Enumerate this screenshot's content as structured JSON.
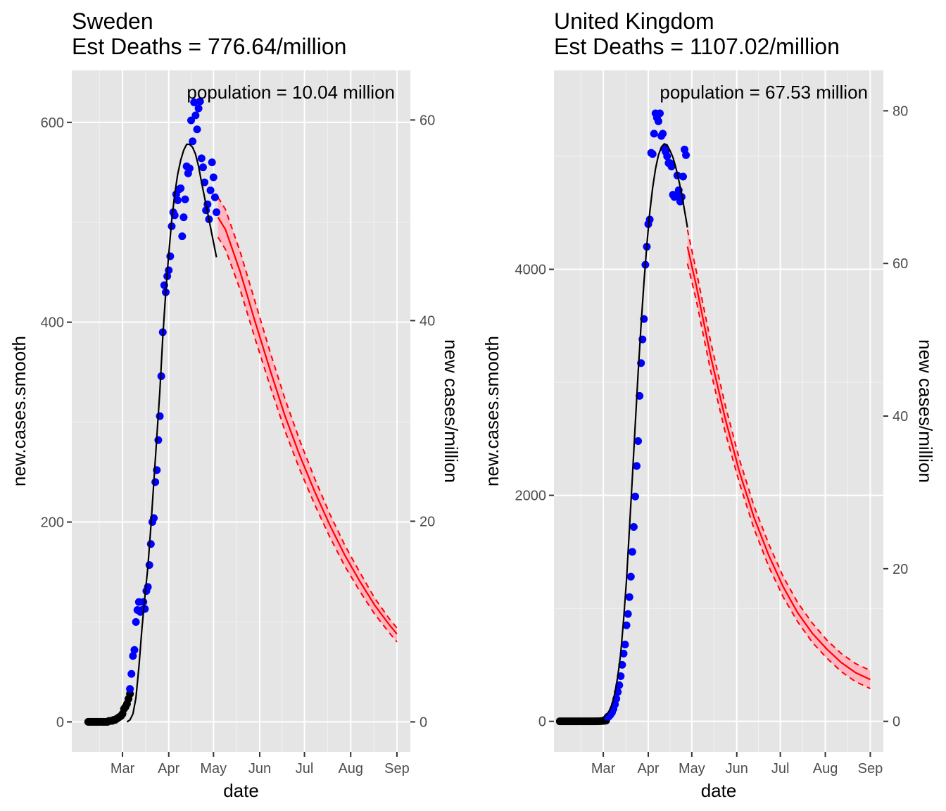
{
  "chart_data": [
    {
      "type": "scatter",
      "title": "Sweden",
      "subtitle": "Est Deaths = 776.64/million",
      "annotation": "population = 10.04 million",
      "xlabel": "date",
      "ylabel": "new.cases.smooth",
      "y2label": "new cases/million",
      "x_ticks": [
        "Mar",
        "Apr",
        "May",
        "Jun",
        "Jul",
        "Aug",
        "Sep"
      ],
      "x_tick_days": [
        31,
        62,
        92,
        123,
        153,
        184,
        215
      ],
      "xlim": [
        -3,
        224
      ],
      "y_ticks": [
        0,
        200,
        400,
        600
      ],
      "y2_ticks": [
        0,
        20,
        40,
        60
      ],
      "ylim": [
        -30,
        652
      ],
      "population_million": 10.04,
      "grid": true,
      "colors": {
        "observed": "#0000ff",
        "early": "#000000",
        "fit": "#000000",
        "forecast": "#ff0000",
        "band": "#ffb6c1",
        "panel": "#e5e5e5"
      },
      "series": [
        {
          "name": "",
          "kind": "points-early",
          "x": [
            8,
            9,
            10,
            11,
            12,
            13,
            14,
            15,
            16,
            17,
            18,
            19,
            20,
            21,
            22,
            23,
            24,
            25,
            26,
            27,
            28,
            29,
            30,
            31,
            32,
            33,
            34,
            35,
            36
          ],
          "y": [
            0,
            0,
            0,
            0,
            0,
            0,
            0,
            0,
            0,
            0,
            0,
            0,
            0,
            0,
            1,
            1,
            1,
            2,
            2,
            3,
            4,
            5,
            6,
            8,
            13,
            15,
            18,
            23,
            28
          ]
        },
        {
          "name": "",
          "kind": "points-observed",
          "x": [
            36,
            37,
            38,
            39,
            40,
            41,
            42,
            43,
            44,
            45,
            46,
            47,
            48,
            49,
            50,
            51,
            52,
            53,
            54,
            55,
            56,
            57,
            58,
            59,
            60,
            61,
            62,
            63,
            64,
            65,
            66,
            67,
            68,
            69,
            70,
            71,
            72,
            73,
            74,
            75,
            76,
            77,
            78,
            79,
            80,
            81,
            82,
            83,
            84,
            85,
            86,
            87,
            88,
            89,
            90,
            91,
            92,
            93,
            94
          ],
          "y": [
            33,
            48,
            66,
            72,
            100,
            112,
            120,
            110,
            112,
            120,
            113,
            131,
            135,
            157,
            178,
            200,
            204,
            240,
            252,
            282,
            306,
            346,
            390,
            437,
            430,
            446,
            452,
            466,
            496,
            510,
            507,
            528,
            522,
            533,
            534,
            486,
            505,
            523,
            556,
            549,
            554,
            602,
            581,
            620,
            607,
            593,
            614,
            621,
            564,
            555,
            540,
            512,
            518,
            503,
            532,
            560,
            545,
            525,
            510
          ]
        }
      ],
      "fit_line": {
        "x": [
          34,
          36,
          38,
          40,
          42,
          44,
          46,
          48,
          50,
          52,
          54,
          56,
          58,
          60,
          62,
          64,
          66,
          68,
          70,
          72,
          74,
          76,
          78,
          80,
          82,
          84,
          86,
          88,
          90,
          92,
          94
        ],
        "y": [
          0,
          2,
          8,
          24,
          55,
          93,
          125,
          155,
          195,
          240,
          285,
          330,
          385,
          430,
          468,
          502,
          528,
          548,
          562,
          572,
          578,
          578,
          575,
          568,
          556,
          540,
          525,
          510,
          495,
          480,
          465
        ]
      },
      "forecast": {
        "x": [
          95,
          100,
          110,
          120,
          130,
          140,
          150,
          160,
          170,
          180,
          190,
          200,
          210,
          215
        ],
        "mid": [
          505,
          493,
          450,
          400,
          352,
          306,
          266,
          230,
          197,
          167,
          141,
          117,
          97,
          88
        ],
        "lower": [
          485,
          473,
          432,
          383,
          336,
          291,
          252,
          217,
          185,
          156,
          131,
          108,
          89,
          80
        ],
        "upper": [
          525,
          513,
          470,
          420,
          370,
          323,
          281,
          243,
          208,
          177,
          150,
          124,
          103,
          94
        ]
      }
    },
    {
      "type": "scatter",
      "title": "United Kingdom",
      "subtitle": "Est Deaths = 1107.02/million",
      "annotation": "population = 67.53 million",
      "xlabel": "date",
      "ylabel": "new.cases.smooth",
      "y2label": "new cases/million",
      "x_ticks": [
        "Mar",
        "Apr",
        "May",
        "Jun",
        "Jul",
        "Aug",
        "Sep"
      ],
      "x_tick_days": [
        31,
        62,
        92,
        123,
        153,
        184,
        215
      ],
      "xlim": [
        -3,
        224
      ],
      "y_ticks": [
        0,
        2000,
        4000
      ],
      "y2_ticks": [
        0,
        20,
        40,
        60,
        80
      ],
      "ylim": [
        -270,
        5760
      ],
      "population_million": 67.53,
      "grid": true,
      "colors": {
        "observed": "#0000ff",
        "early": "#000000",
        "fit": "#000000",
        "forecast": "#ff0000",
        "band": "#ffb6c1",
        "panel": "#e5e5e5"
      },
      "series": [
        {
          "name": "",
          "kind": "points-early",
          "x": [
            1,
            2,
            3,
            4,
            5,
            6,
            7,
            8,
            9,
            10,
            11,
            12,
            13,
            14,
            15,
            16,
            17,
            18,
            19,
            20,
            21,
            22,
            23,
            24,
            25,
            26,
            27,
            28,
            29,
            30,
            31,
            32,
            33
          ],
          "y": [
            0,
            0,
            0,
            0,
            0,
            0,
            0,
            0,
            0,
            0,
            0,
            0,
            0,
            0,
            0,
            0,
            0,
            0,
            0,
            0,
            0,
            0,
            0,
            0,
            0,
            0,
            1,
            1,
            2,
            3,
            4,
            5,
            8
          ]
        },
        {
          "name": "",
          "kind": "points-observed",
          "x": [
            34,
            35,
            36,
            37,
            38,
            39,
            40,
            41,
            42,
            43,
            44,
            45,
            46,
            47,
            48,
            49,
            50,
            51,
            52,
            53,
            54,
            55,
            56,
            57,
            58,
            59,
            60,
            61,
            62,
            63,
            64,
            65,
            66,
            67,
            68,
            69,
            70,
            71,
            72,
            73,
            74,
            75,
            76,
            77,
            78,
            79,
            80,
            81,
            82,
            83,
            84,
            85,
            86,
            87,
            88
          ],
          "y": [
            40,
            45,
            60,
            80,
            110,
            150,
            200,
            260,
            320,
            400,
            500,
            600,
            680,
            850,
            950,
            1100,
            1280,
            1500,
            1720,
            1990,
            2260,
            2480,
            2880,
            3170,
            3380,
            3560,
            4040,
            4200,
            4400,
            4440,
            5030,
            5020,
            5200,
            5380,
            5340,
            5310,
            5380,
            5180,
            5200,
            5070,
            5040,
            5000,
            4940,
            4940,
            4910,
            4660,
            4640,
            4650,
            4830,
            4700,
            4600,
            4640,
            4820,
            5060,
            5010
          ]
        }
      ],
      "fit_line": {
        "x": [
          0,
          5,
          10,
          15,
          20,
          25,
          28,
          31,
          33,
          35,
          37,
          39,
          41,
          43,
          45,
          47,
          49,
          51,
          53,
          55,
          57,
          59,
          61,
          63,
          65,
          67,
          69,
          71,
          73,
          75,
          77,
          79,
          81,
          83,
          85,
          87,
          89
        ],
        "y": [
          0,
          1,
          2,
          4,
          6,
          12,
          20,
          35,
          55,
          90,
          150,
          250,
          400,
          600,
          900,
          1250,
          1700,
          2150,
          2620,
          3080,
          3500,
          3880,
          4210,
          4500,
          4720,
          4890,
          5010,
          5080,
          5110,
          5100,
          5050,
          4990,
          4900,
          4790,
          4670,
          4520,
          4370
        ]
      },
      "forecast": {
        "x": [
          89,
          95,
          105,
          115,
          125,
          135,
          145,
          155,
          165,
          175,
          185,
          195,
          205,
          215
        ],
        "mid": [
          4200,
          3860,
          3230,
          2680,
          2200,
          1800,
          1470,
          1190,
          960,
          780,
          640,
          520,
          430,
          370
        ],
        "lower": [
          4050,
          3730,
          3100,
          2560,
          2100,
          1700,
          1370,
          1100,
          880,
          700,
          560,
          440,
          350,
          290
        ],
        "upper": [
          4350,
          3990,
          3360,
          2800,
          2310,
          1900,
          1570,
          1280,
          1050,
          870,
          720,
          600,
          510,
          450
        ]
      }
    }
  ]
}
